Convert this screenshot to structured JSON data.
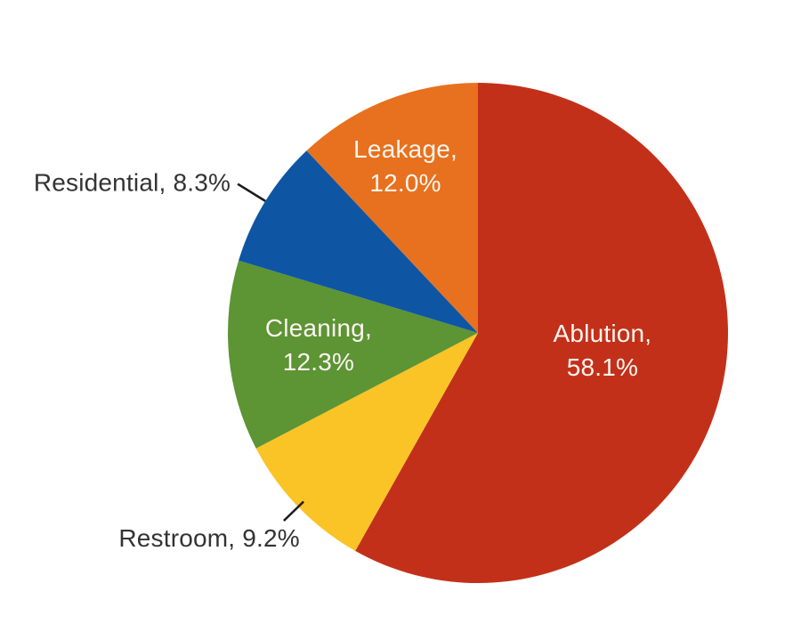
{
  "chart_data": {
    "type": "pie",
    "title": "",
    "direction": "clockwise",
    "start_angle_deg": 0,
    "background_color": "#ffffff",
    "legend": "none",
    "leader_line_color": "#1c1c1c",
    "outside_label_color": "#333333",
    "segments": [
      {
        "name": "Ablution",
        "value_pct": 58.1,
        "color": "#c33019",
        "label_lines": [
          "Ablution,",
          "58.1%"
        ],
        "label_position": "inside",
        "label_color": "#fbf5f0"
      },
      {
        "name": "Restroom",
        "value_pct": 9.2,
        "color": "#fac326",
        "label_lines": [
          "Restroom, 9.2%"
        ],
        "label_position": "outside",
        "label_color": "#333333"
      },
      {
        "name": "Cleaning",
        "value_pct": 12.3,
        "color": "#5d9434",
        "label_lines": [
          "Cleaning,",
          "12.3%"
        ],
        "label_position": "inside",
        "label_color": "#fbf5f0"
      },
      {
        "name": "Residential",
        "value_pct": 8.3,
        "color": "#0e56a3",
        "label_lines": [
          "Residential, 8.3%"
        ],
        "label_position": "outside",
        "label_color": "#333333"
      },
      {
        "name": "Leakage",
        "value_pct": 12.0,
        "color": "#e7711e",
        "label_lines": [
          "Leakage,",
          "12.0%"
        ],
        "label_position": "inside",
        "label_color": "#fbf5f0"
      }
    ]
  }
}
